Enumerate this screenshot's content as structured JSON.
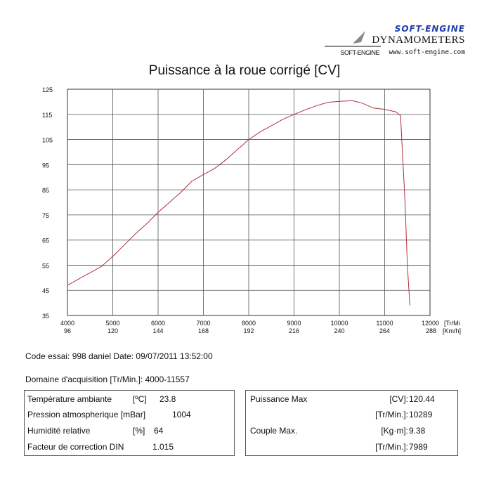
{
  "header": {
    "brand": "SOFT-ENGINE",
    "product": "DYNAMOMETERS",
    "small_brand": "SOFT-ENGINE",
    "url": "www.soft-engine.com"
  },
  "chart_data": {
    "type": "line",
    "title": "Puissance à la roue corrigé [CV]",
    "x_unit_1": "[Tr/Mi",
    "x_unit_2": "[Km/h]",
    "xlim": [
      4000,
      12000
    ],
    "ylim": [
      35,
      125
    ],
    "x_ticks": [
      4000,
      5000,
      6000,
      7000,
      8000,
      9000,
      10000,
      11000,
      12000
    ],
    "x_ticks_secondary": [
      96,
      120,
      144,
      168,
      192,
      216,
      240,
      264,
      288
    ],
    "y_ticks": [
      35,
      45,
      55,
      65,
      75,
      85,
      95,
      105,
      115,
      125
    ],
    "grid": true,
    "line_color": "#b03040",
    "series": [
      {
        "x": [
          4000,
          4250,
          4500,
          4750,
          5000,
          5250,
          5500,
          5750,
          6000,
          6250,
          6500,
          6750,
          7000,
          7250,
          7500,
          7750,
          8000,
          8250,
          8500,
          8750,
          9000,
          9250,
          9500,
          9750,
          10000,
          10289,
          10500,
          10750,
          11000,
          11250,
          11350,
          11450,
          11500,
          11557
        ],
        "y": [
          47,
          49.5,
          52,
          54.5,
          58.5,
          63,
          67.5,
          71.5,
          76,
          80,
          84,
          88.5,
          91,
          93.5,
          97,
          101,
          105,
          108,
          110.5,
          113,
          115,
          116.8,
          118.5,
          119.8,
          120.2,
          120.44,
          119.5,
          117.5,
          117,
          116,
          114.5,
          80,
          55,
          39
        ]
      }
    ]
  },
  "info": {
    "code_line": "Code essai: 998 daniel  Date: 09/07/2011 13:52:00",
    "domain_line": "Domaine d'acquisition [Tr/Min.]: 4000-11557",
    "left_box": {
      "temp_label": "Température ambiante",
      "temp_unit": "[ºC]",
      "temp_value": "23.8",
      "pression_label": "Pression atmospherique [mBar]",
      "pression_value": "1004",
      "humid_label": "Humidité relative",
      "humid_unit": "[%]",
      "humid_value": "64",
      "facteur_label": "Facteur de correction DIN",
      "facteur_value": "1.015"
    },
    "right_box": {
      "puissance_label": "Puissance Max",
      "puissance_unit": "[CV]:",
      "puissance_value": "120.44",
      "puissance_rpm_unit": "[Tr/Min.]:",
      "puissance_rpm_value": "10289",
      "couple_label": "Couple Max.",
      "couple_unit": "[Kg·m]:",
      "couple_value": "9.38",
      "couple_rpm_unit": "[Tr/Min.]:",
      "couple_rpm_value": "7989"
    }
  }
}
